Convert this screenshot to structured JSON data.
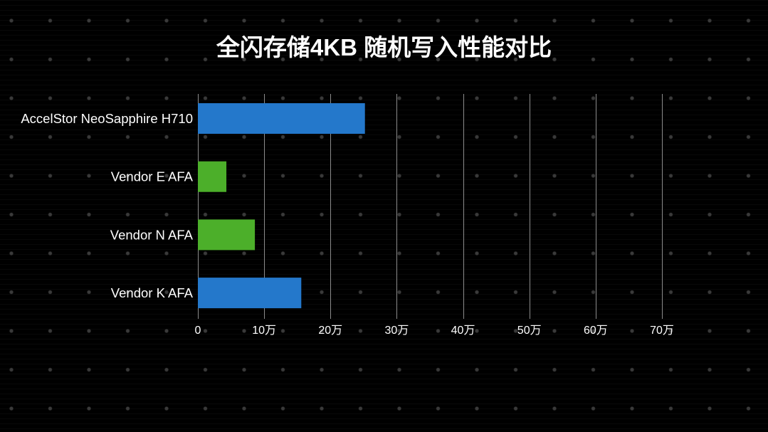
{
  "colors": {
    "background": "#000000",
    "text": "#ffffff",
    "grid": "#8c8c8c"
  },
  "chart_data": {
    "type": "bar",
    "orientation": "horizontal",
    "title": "全闪存储4KB 随机写入性能对比",
    "categories": [
      "AccelStor NeoSapphire H710",
      "Vendor E AFA",
      "Vendor N AFA",
      "Vendor K AFA"
    ],
    "values": [
      25.2,
      4.3,
      8.6,
      15.6
    ],
    "bar_colors": [
      "#2478cb",
      "#4caf2a",
      "#4caf2a",
      "#2478cb"
    ],
    "xlim": [
      0,
      70
    ],
    "xticks": [
      0,
      10,
      20,
      30,
      40,
      50,
      60,
      70
    ],
    "xtick_labels": [
      "0",
      "10万",
      "20万",
      "30万",
      "40万",
      "50万",
      "60万",
      "70万"
    ],
    "grid": "vertical",
    "legend": "none"
  }
}
